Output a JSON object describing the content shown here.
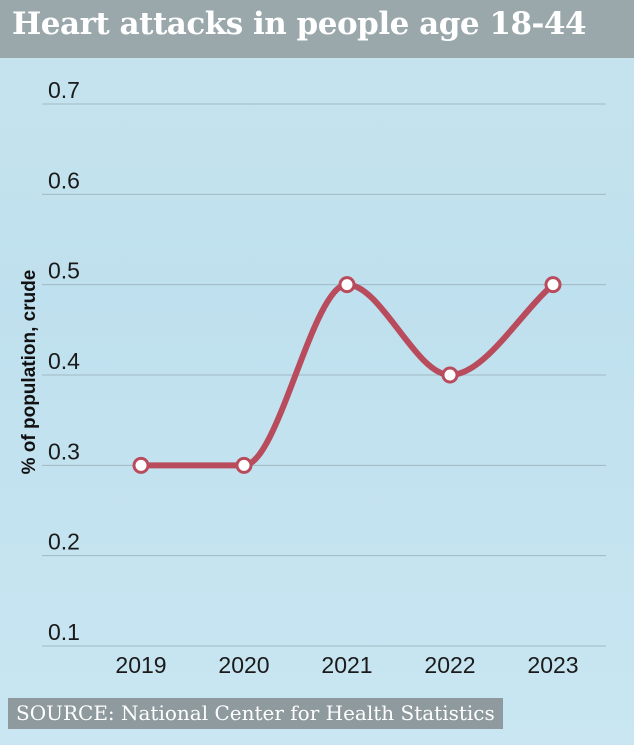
{
  "header": {
    "title": "Heart attacks in people age 18-44"
  },
  "footer": {
    "source": "SOURCE: National Center for Health Statistics"
  },
  "colors": {
    "line": "#b84c5d",
    "grid": "#9fb9c3",
    "title_bar": "#9aa7ab",
    "marker_fill": "#ffffff"
  },
  "chart_data": {
    "type": "line",
    "title": "Heart attacks in people age 18-44",
    "xlabel": "",
    "ylabel": "% of population, crude",
    "categories": [
      "2019",
      "2020",
      "2021",
      "2022",
      "2023"
    ],
    "series": [
      {
        "values": [
          0.3,
          0.3,
          0.5,
          0.4,
          0.5
        ]
      }
    ],
    "yticks": [
      "0.1",
      "0.2",
      "0.3",
      "0.4",
      "0.5",
      "0.6",
      "0.7"
    ],
    "ylim": [
      0.1,
      0.7
    ],
    "grid": true,
    "smooth": true
  }
}
